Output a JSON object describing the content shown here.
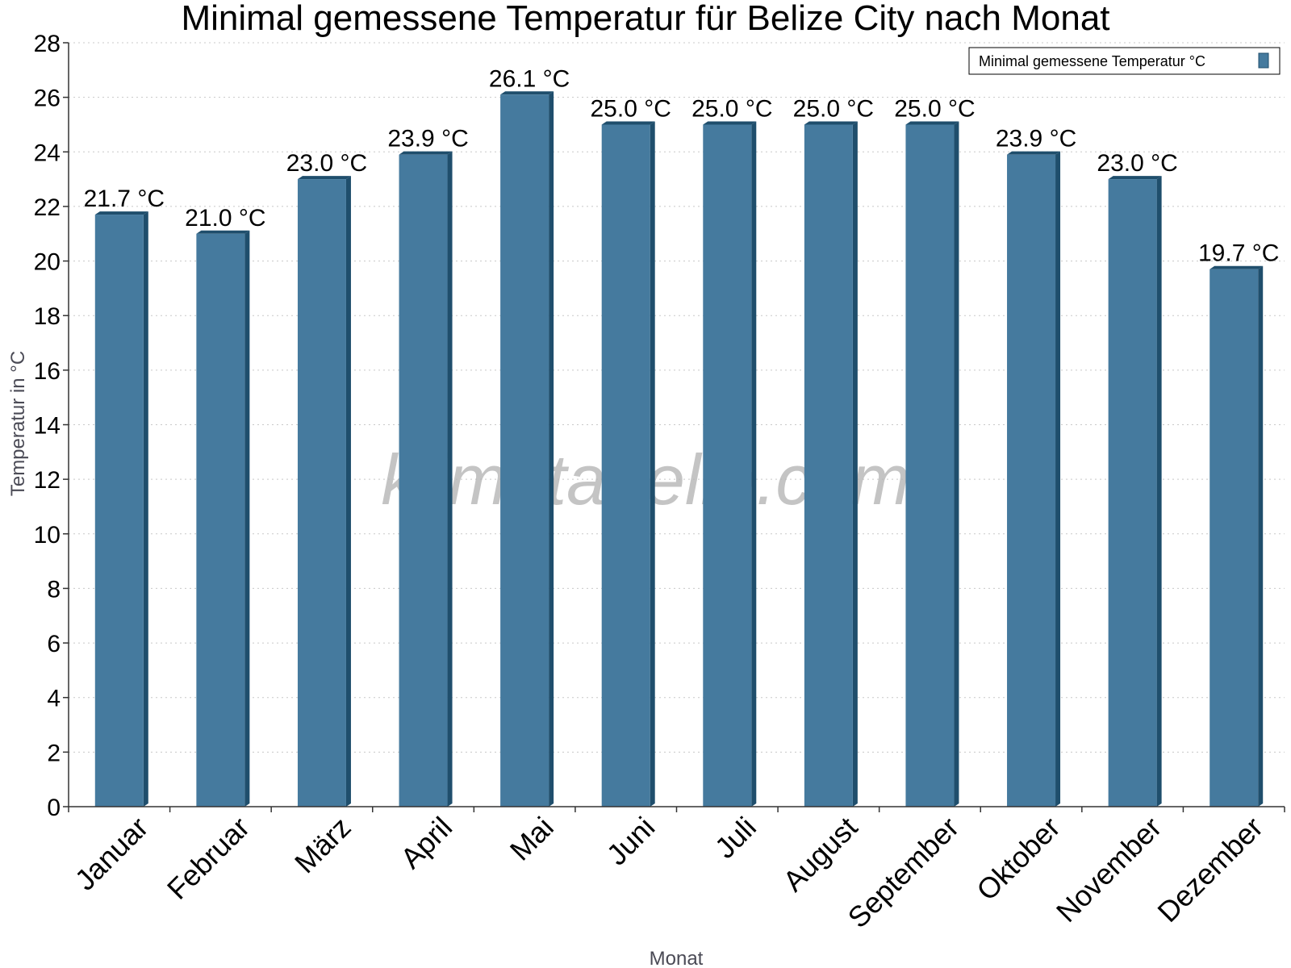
{
  "chart_data": {
    "type": "bar",
    "title": "Minimal gemessene Temperatur für Belize City nach Monat",
    "xlabel": "Monat",
    "ylabel": "Temperatur in °C",
    "ylim": [
      0,
      28
    ],
    "yticks": [
      0,
      2,
      4,
      6,
      8,
      10,
      12,
      14,
      16,
      18,
      20,
      22,
      24,
      26,
      28
    ],
    "grid": true,
    "legend_position": "top-right",
    "categories": [
      "Januar",
      "Februar",
      "März",
      "April",
      "Mai",
      "Juni",
      "Juli",
      "August",
      "September",
      "Oktober",
      "November",
      "Dezember"
    ],
    "series": [
      {
        "name": "Minimal gemessene Temperatur °C",
        "values": [
          21.7,
          21.0,
          23.0,
          23.9,
          26.1,
          25.0,
          25.0,
          25.0,
          25.0,
          23.9,
          23.0,
          19.7
        ],
        "data_labels": [
          "21.7 °C",
          "21.0 °C",
          "23.0 °C",
          "23.9 °C",
          "26.1 °C",
          "25.0 °C",
          "25.0 °C",
          "25.0 °C",
          "25.0 °C",
          "23.9 °C",
          "23.0 °C",
          "19.7 °C"
        ]
      }
    ],
    "colors": {
      "bar": "#457a9e",
      "bar_shade": "#1f4e6c",
      "grid": "#c8c8c8"
    }
  },
  "watermark": "klimatabelle.com"
}
